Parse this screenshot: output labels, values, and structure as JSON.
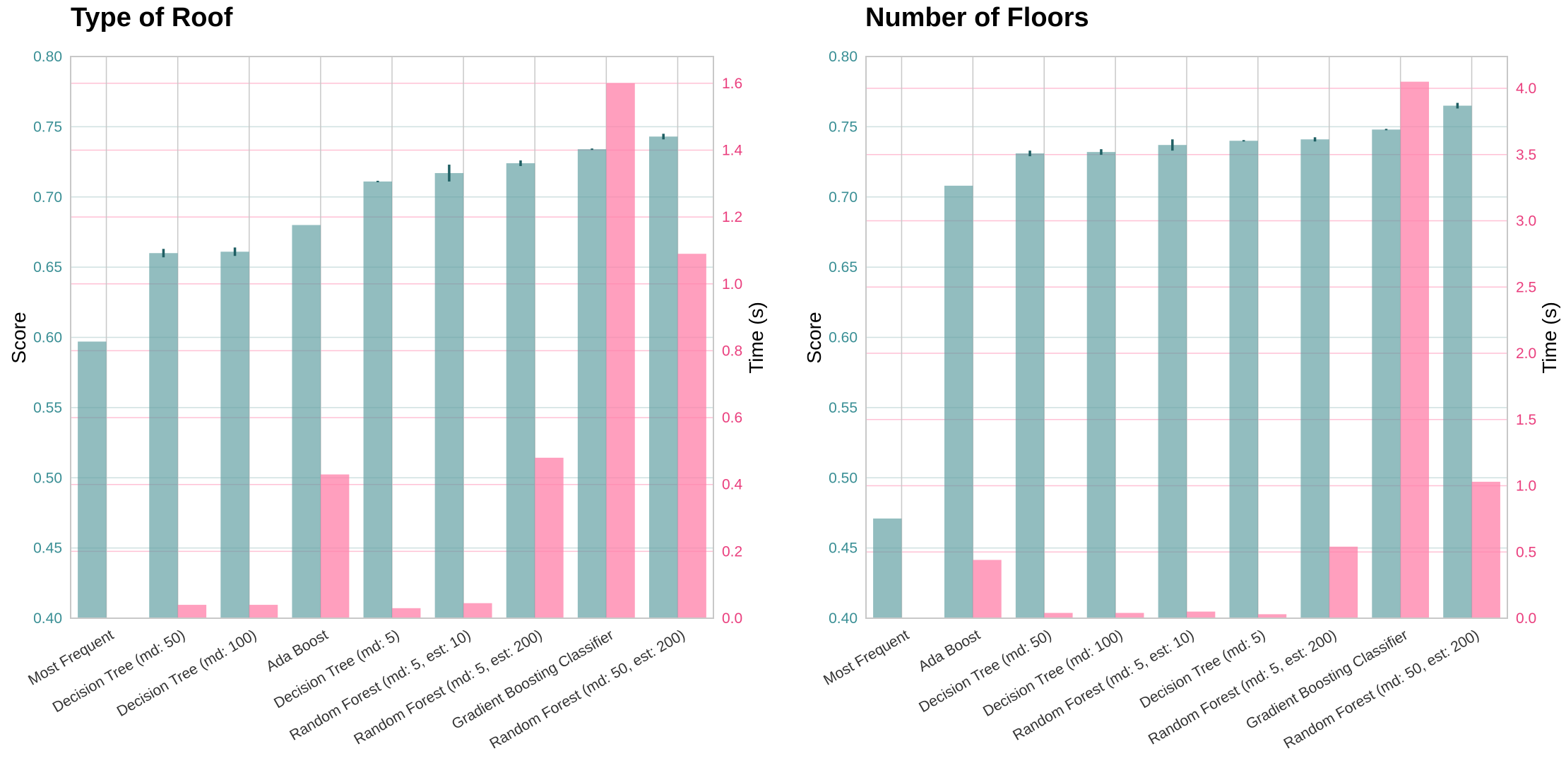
{
  "colors": {
    "score": "#5f9ea0",
    "score_text": "#3a8f95",
    "time": "#ff7fa8",
    "time_text": "#ea3f7e",
    "err": "#1f5f63"
  },
  "chart_data": [
    {
      "type": "bar",
      "title": "Type of Roof",
      "ylabel": "Score",
      "y2label": "Time (s)",
      "ylim": [
        0.4,
        0.8
      ],
      "y2lim": [
        0.0,
        1.68
      ],
      "yticks": [
        "0.40",
        "0.45",
        "0.50",
        "0.55",
        "0.60",
        "0.65",
        "0.70",
        "0.75",
        "0.80"
      ],
      "y2ticks": [
        "0.0",
        "0.2",
        "0.4",
        "0.6",
        "0.8",
        "1.0",
        "1.2",
        "1.4",
        "1.6"
      ],
      "categories": [
        "Most Frequent",
        "Decision Tree (md: 50)",
        "Decision Tree (md: 100)",
        "Ada Boost",
        "Decision Tree (md: 5)",
        "Random Forest (md: 5, est: 10)",
        "Random Forest (md: 5, est: 200)",
        "Gradient Boosting Classifier",
        "Random Forest (md: 50, est: 200)"
      ],
      "series": [
        {
          "name": "Score",
          "values": [
            0.597,
            0.66,
            0.661,
            0.68,
            0.711,
            0.717,
            0.724,
            0.734,
            0.743
          ],
          "errors": [
            0,
            0.003,
            0.003,
            0,
            0.0005,
            0.006,
            0.002,
            0.0005,
            0.002
          ]
        },
        {
          "name": "Time (s)",
          "values": [
            0.0,
            0.04,
            0.04,
            0.43,
            0.03,
            0.045,
            0.48,
            1.6,
            1.09
          ]
        }
      ]
    },
    {
      "type": "bar",
      "title": "Number of Floors",
      "ylabel": "Score",
      "y2label": "Time (s)",
      "ylim": [
        0.4,
        0.8
      ],
      "y2lim": [
        0.0,
        4.24
      ],
      "yticks": [
        "0.40",
        "0.45",
        "0.50",
        "0.55",
        "0.60",
        "0.65",
        "0.70",
        "0.75",
        "0.80"
      ],
      "y2ticks": [
        "0.0",
        "0.5",
        "1.0",
        "1.5",
        "2.0",
        "2.5",
        "3.0",
        "3.5",
        "4.0"
      ],
      "categories": [
        "Most Frequent",
        "Ada Boost",
        "Decision Tree (md: 50)",
        "Decision Tree (md: 100)",
        "Random Forest (md: 5, est: 10)",
        "Decision Tree (md: 5)",
        "Random Forest (md: 5, est: 200)",
        "Gradient Boosting Classifier",
        "Random Forest (md: 50, est: 200)"
      ],
      "series": [
        {
          "name": "Score",
          "values": [
            0.471,
            0.708,
            0.731,
            0.732,
            0.737,
            0.74,
            0.741,
            0.748,
            0.765
          ],
          "errors": [
            0,
            0,
            0.002,
            0.002,
            0.004,
            0.0005,
            0.0015,
            0.0005,
            0.002
          ]
        },
        {
          "name": "Time (s)",
          "values": [
            0.0,
            0.44,
            0.04,
            0.04,
            0.05,
            0.03,
            0.54,
            4.05,
            1.03
          ]
        }
      ]
    }
  ]
}
